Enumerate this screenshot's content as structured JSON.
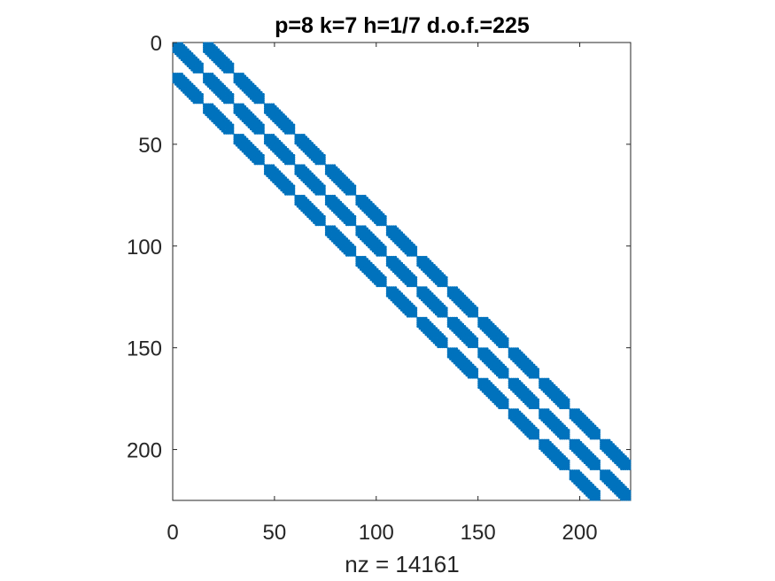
{
  "chart_data": {
    "type": "spy",
    "title": "p=8 k=7 h=1/7 d.o.f.=225",
    "xlabel": "nz = 14161",
    "ylabel": "",
    "matrix_size": 225,
    "xlim": [
      0,
      225
    ],
    "ylim": [
      0,
      225
    ],
    "y_axis_direction": "reversed",
    "x_ticks": [
      0,
      50,
      100,
      150,
      200
    ],
    "y_ticks": [
      0,
      50,
      100,
      150,
      200
    ],
    "nz": 14161,
    "block_size": 15,
    "block_rows": 15,
    "sub_block_size": 9,
    "marker_color": "#0072BD",
    "grid": false,
    "description_of_pattern": "block-banded sparsity: each of 15 block rows couples to block columns j in [i-1, i+1] via 15x15 blocks; inside each block, 9-wide diagonal sub-bands"
  }
}
